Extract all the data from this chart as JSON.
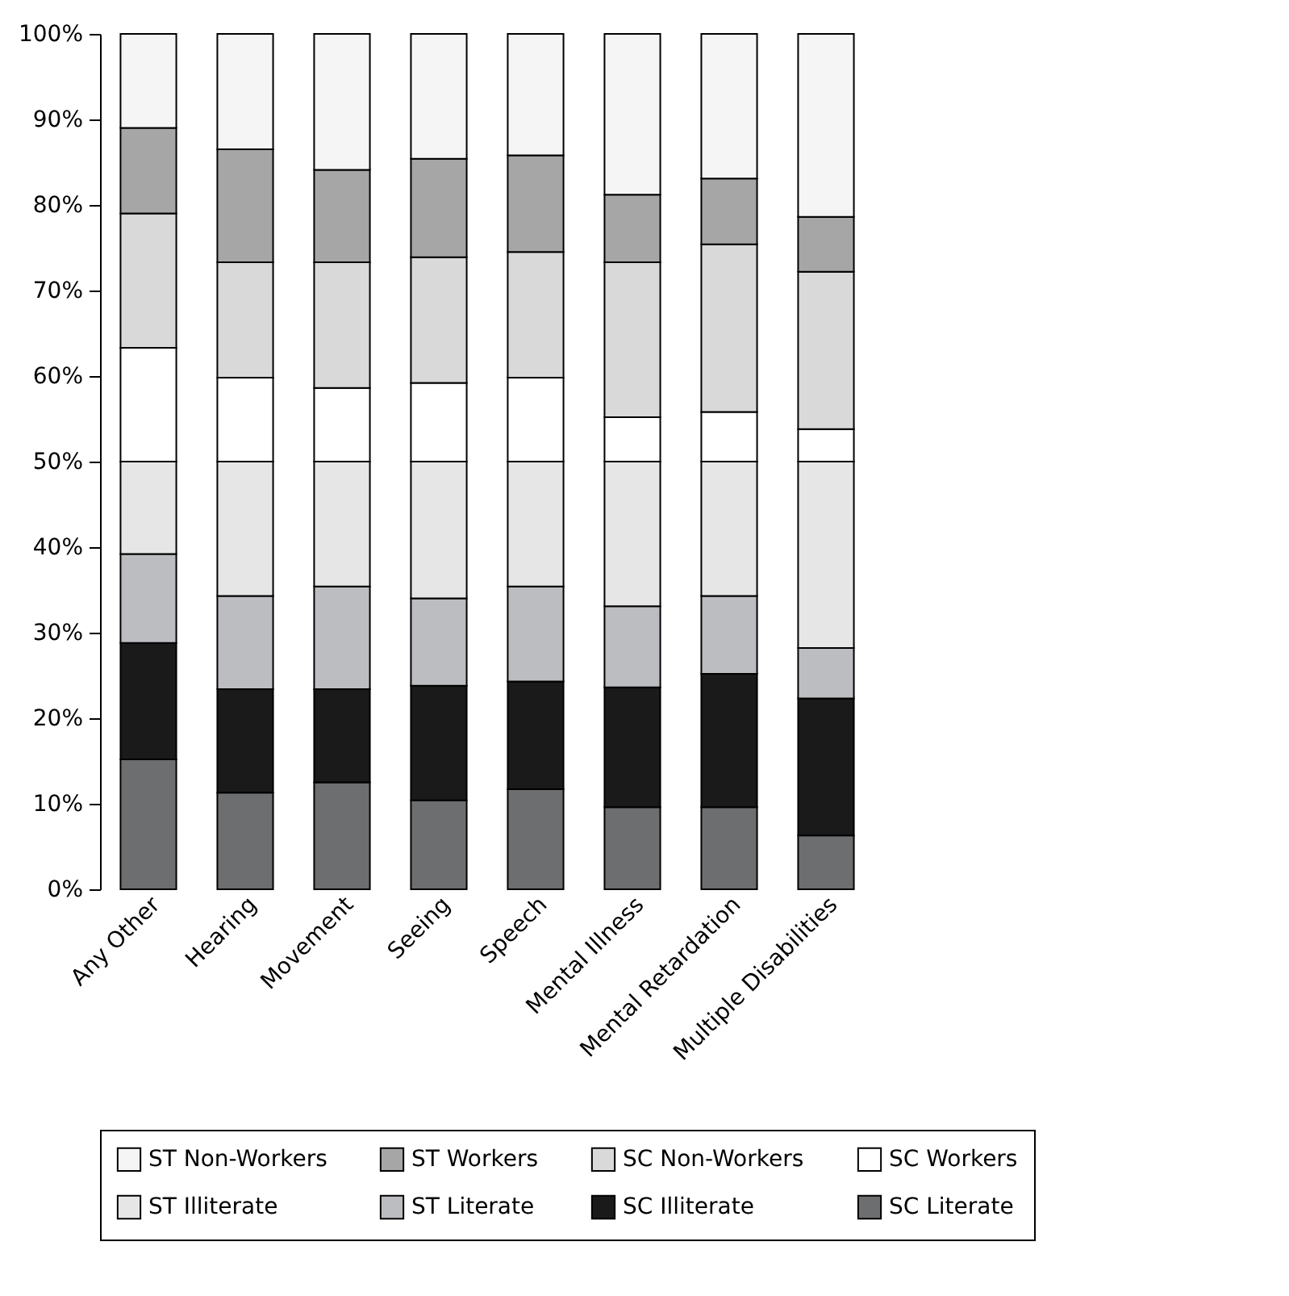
{
  "chart_data": {
    "type": "bar",
    "stacked": true,
    "categories": [
      "Any Other",
      "Hearing",
      "Movement",
      "Seeing",
      "Speech",
      "Mental Illness",
      "Mental Retardation",
      "Multiple Disabilities"
    ],
    "series": [
      {
        "name": "SC Literate",
        "color": "#6d6e70",
        "values": [
          15.2,
          11.3,
          12.5,
          10.4,
          11.7,
          9.6,
          9.6,
          6.3
        ]
      },
      {
        "name": "SC Illiterate",
        "color": "#1a1a1a",
        "values": [
          13.6,
          12.1,
          10.9,
          13.4,
          12.6,
          14.0,
          15.6,
          16.0
        ]
      },
      {
        "name": "ST Literate",
        "color": "#bcbdc0",
        "values": [
          10.4,
          10.9,
          12.0,
          10.2,
          11.1,
          9.5,
          9.1,
          5.9
        ]
      },
      {
        "name": "ST Illiterate",
        "color": "#e6e6e6",
        "values": [
          10.8,
          15.7,
          14.6,
          16.0,
          14.6,
          16.9,
          15.7,
          21.8
        ]
      },
      {
        "name": "SC Workers",
        "color": "#ffffff",
        "values": [
          13.3,
          9.8,
          8.6,
          9.2,
          9.8,
          5.2,
          5.8,
          3.8
        ]
      },
      {
        "name": "SC Non-Workers",
        "color": "#d9d9d9",
        "values": [
          15.7,
          13.5,
          14.7,
          14.7,
          14.7,
          18.1,
          19.6,
          18.4
        ]
      },
      {
        "name": "ST Workers",
        "color": "#a6a6a6",
        "values": [
          10.0,
          13.2,
          10.8,
          11.5,
          11.3,
          7.9,
          7.7,
          6.4
        ]
      },
      {
        "name": "ST Non-Workers",
        "color": "#f5f5f5",
        "values": [
          11.0,
          13.5,
          15.9,
          14.6,
          14.2,
          18.8,
          16.9,
          21.4
        ]
      }
    ],
    "ylim": [
      0,
      100
    ],
    "yticks": [
      {
        "value": 0,
        "label": "0%"
      },
      {
        "value": 10,
        "label": "10%"
      },
      {
        "value": 20,
        "label": "20%"
      },
      {
        "value": 30,
        "label": "30%"
      },
      {
        "value": 40,
        "label": "40%"
      },
      {
        "value": 50,
        "label": "50%"
      },
      {
        "value": 60,
        "label": "60%"
      },
      {
        "value": 70,
        "label": "70%"
      },
      {
        "value": 80,
        "label": "80%"
      },
      {
        "value": 90,
        "label": "90%"
      },
      {
        "value": 100,
        "label": "100%"
      }
    ],
    "legend": "bottom"
  }
}
